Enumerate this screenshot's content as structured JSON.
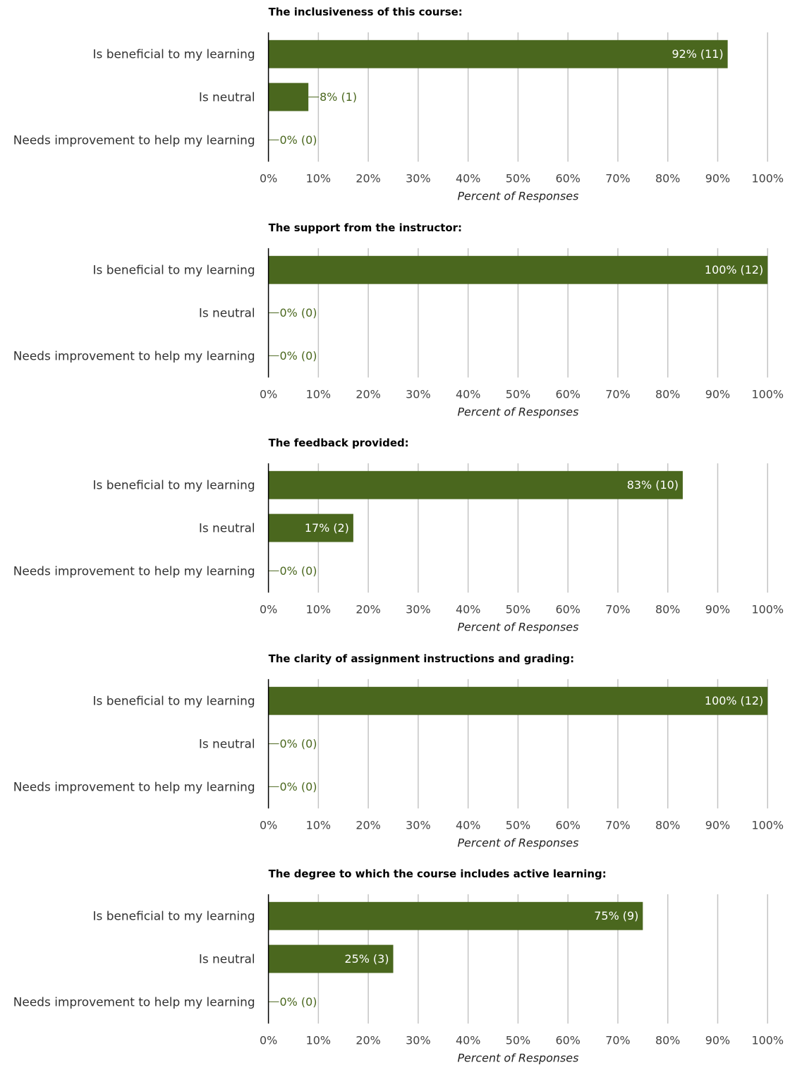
{
  "chart_data": [
    {
      "type": "bar",
      "orientation": "horizontal",
      "title": "The inclusiveness of this course:",
      "xlabel": "Percent of Responses",
      "categories": [
        "Is beneficial to my learning",
        "Is neutral",
        "Needs improvement to help my learning"
      ],
      "values": [
        92,
        8,
        0
      ],
      "data_labels": [
        "92% (11)",
        "8% (1)",
        "0% (0)"
      ],
      "xlim": [
        0,
        100
      ],
      "ticks": [
        "0%",
        "10%",
        "20%",
        "30%",
        "40%",
        "50%",
        "60%",
        "70%",
        "80%",
        "90%",
        "100%"
      ],
      "grid": true
    },
    {
      "type": "bar",
      "orientation": "horizontal",
      "title": "The support from the instructor:",
      "xlabel": "Percent of Responses",
      "categories": [
        "Is beneficial to my learning",
        "Is neutral",
        "Needs improvement to help my learning"
      ],
      "values": [
        100,
        0,
        0
      ],
      "data_labels": [
        "100% (12)",
        "0% (0)",
        "0% (0)"
      ],
      "xlim": [
        0,
        100
      ],
      "ticks": [
        "0%",
        "10%",
        "20%",
        "30%",
        "40%",
        "50%",
        "60%",
        "70%",
        "80%",
        "90%",
        "100%"
      ],
      "grid": true
    },
    {
      "type": "bar",
      "orientation": "horizontal",
      "title": "The feedback provided:",
      "xlabel": "Percent of Responses",
      "categories": [
        "Is beneficial to my learning",
        "Is neutral",
        "Needs improvement to help my learning"
      ],
      "values": [
        83,
        17,
        0
      ],
      "data_labels": [
        "83% (10)",
        "17% (2)",
        "0% (0)"
      ],
      "xlim": [
        0,
        100
      ],
      "ticks": [
        "0%",
        "10%",
        "20%",
        "30%",
        "40%",
        "50%",
        "60%",
        "70%",
        "80%",
        "90%",
        "100%"
      ],
      "grid": true
    },
    {
      "type": "bar",
      "orientation": "horizontal",
      "title": "The clarity of assignment instructions and grading:",
      "xlabel": "Percent of Responses",
      "categories": [
        "Is beneficial to my learning",
        "Is neutral",
        "Needs improvement to help my learning"
      ],
      "values": [
        100,
        0,
        0
      ],
      "data_labels": [
        "100% (12)",
        "0% (0)",
        "0% (0)"
      ],
      "xlim": [
        0,
        100
      ],
      "ticks": [
        "0%",
        "10%",
        "20%",
        "30%",
        "40%",
        "50%",
        "60%",
        "70%",
        "80%",
        "90%",
        "100%"
      ],
      "grid": true
    },
    {
      "type": "bar",
      "orientation": "horizontal",
      "title": "The degree to which the course includes active learning:",
      "xlabel": "Percent of Responses",
      "categories": [
        "Is beneficial to my learning",
        "Is neutral",
        "Needs improvement to help my learning"
      ],
      "values": [
        75,
        25,
        0
      ],
      "data_labels": [
        "75% (9)",
        "25% (3)",
        "0% (0)"
      ],
      "xlim": [
        0,
        100
      ],
      "ticks": [
        "0%",
        "10%",
        "20%",
        "30%",
        "40%",
        "50%",
        "60%",
        "70%",
        "80%",
        "90%",
        "100%"
      ],
      "grid": true
    }
  ],
  "colors": {
    "bar": "#4a671e",
    "label_inside": "#ffffff",
    "label_outside": "#4a671e",
    "grid": "#c4c4c4",
    "axis": "#000000"
  }
}
